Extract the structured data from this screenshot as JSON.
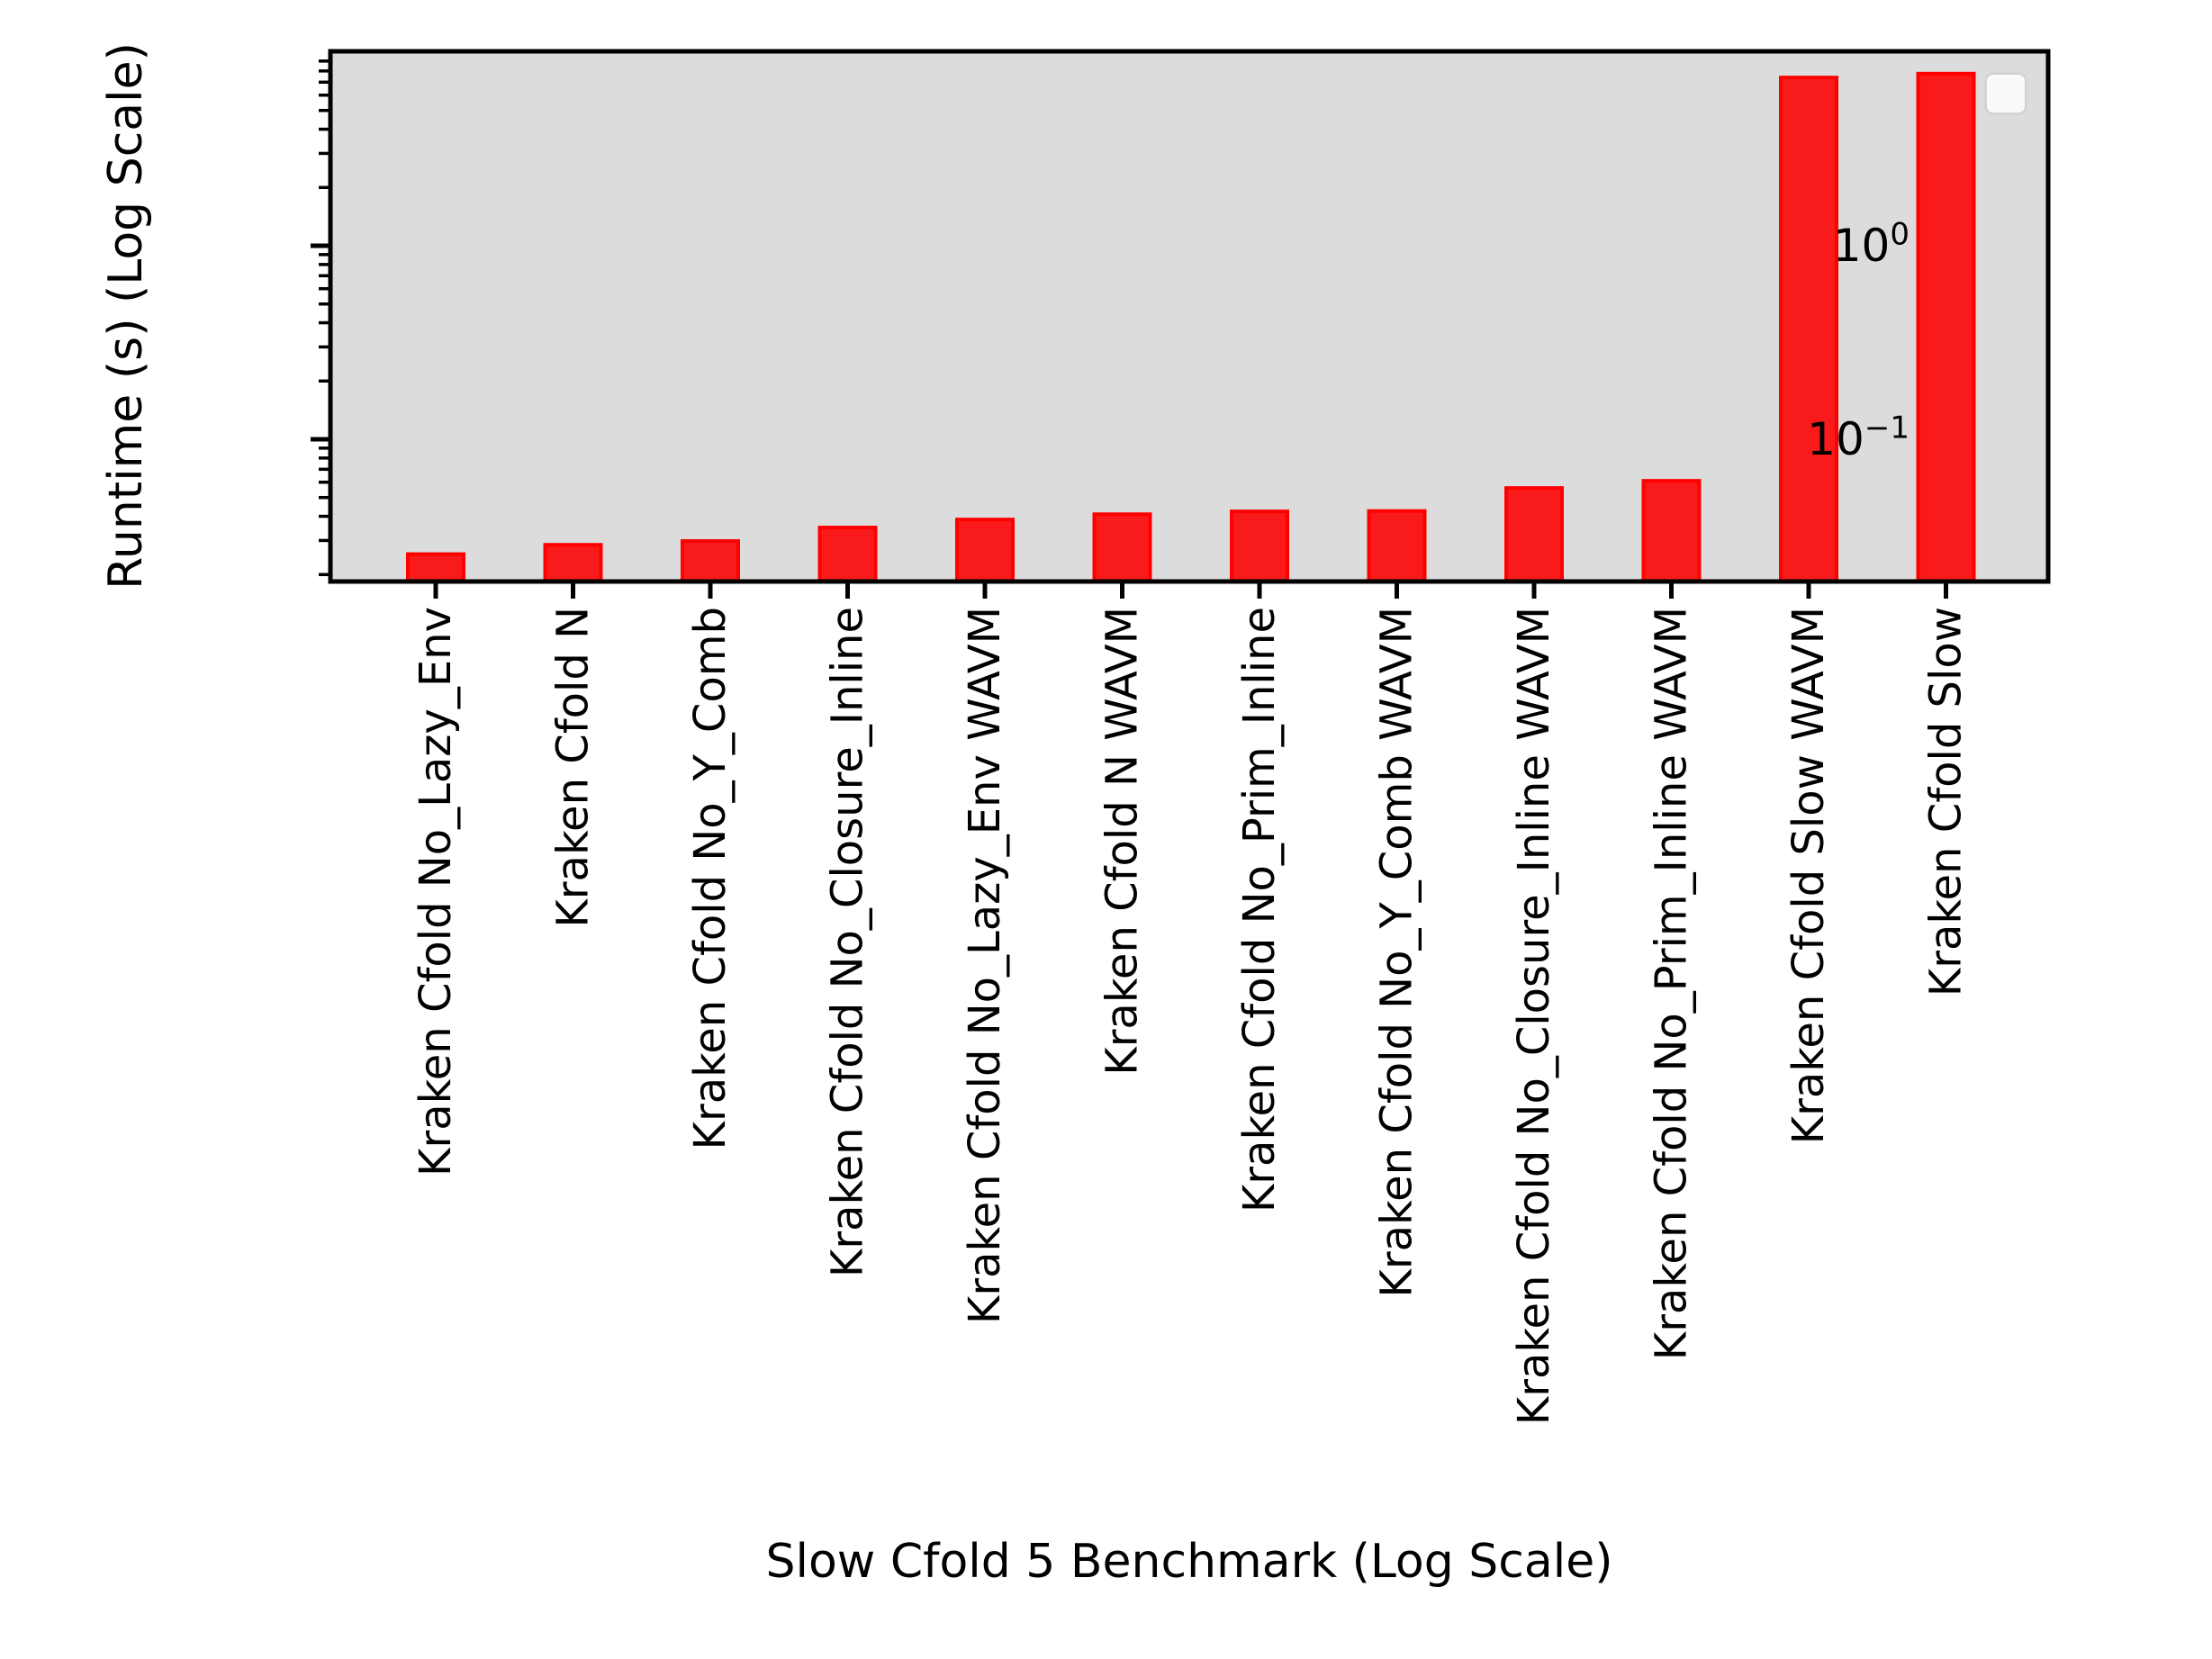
{
  "figure": {
    "background": "#ffffff"
  },
  "chart_data": {
    "type": "bar",
    "title": "",
    "xlabel": "Slow Cfold 5 Benchmark (Log Scale)",
    "ylabel": "Runtime (s) (Log Scale)",
    "yscale": "log",
    "ylim": [
      0.0185,
      10.1
    ],
    "grid": false,
    "plot_bg": "#dcdcdc",
    "bar_color": "#f91b1b",
    "bar_edge_color": "#ff0000",
    "spine_color": "#000000",
    "categories": [
      "Kraken Cfold No_Lazy_Env",
      "Kraken Cfold N",
      "Kraken Cfold No_Y_Comb",
      "Kraken Cfold No_Closure_Inline",
      "Kraken Cfold No_Lazy_Env WAVM",
      "Kraken Cfold N WAVM",
      "Kraken Cfold No_Prim_Inline",
      "Kraken Cfold No_Y_Comb WAVM",
      "Kraken Cfold No_Closure_Inline WAVM",
      "Kraken Cfold No_Prim_Inline WAVM",
      "Kraken Cfold Slow WAVM",
      "Kraken Cfold Slow"
    ],
    "values": [
      0.0255,
      0.0285,
      0.0298,
      0.035,
      0.0385,
      0.041,
      0.0424,
      0.0426,
      0.056,
      0.061,
      7.4,
      7.75
    ],
    "y_ticks": [
      {
        "value": 1,
        "base": "10",
        "exp": "0"
      },
      {
        "value": 0.1,
        "base": "10",
        "exp": "−1"
      }
    ],
    "legend": {
      "visible": true,
      "entries": [],
      "position": "upper right"
    }
  }
}
